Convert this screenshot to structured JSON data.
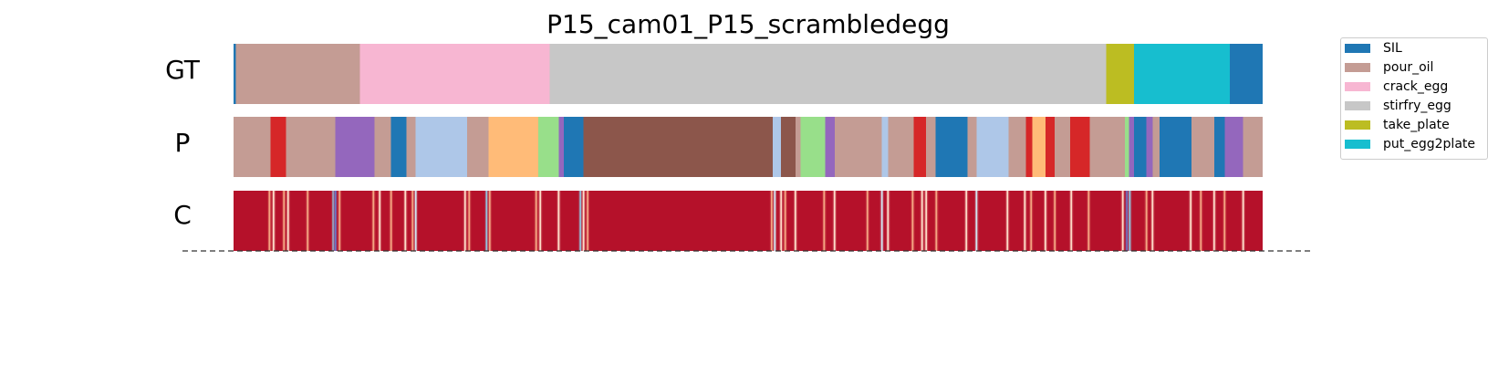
{
  "chart_data": {
    "type": "segmentation",
    "title": "P15_cam01_P15_scrambledegg",
    "rows": [
      "GT",
      "P",
      "C"
    ],
    "legend": [
      {
        "label": "SIL",
        "color": "#1f77b4"
      },
      {
        "label": "pour_oil",
        "color": "#c49c94"
      },
      {
        "label": "crack_egg",
        "color": "#f7b6d2"
      },
      {
        "label": "stirfry_egg",
        "color": "#c7c7c7"
      },
      {
        "label": "take_plate",
        "color": "#bcbd22"
      },
      {
        "label": "put_egg2plate",
        "color": "#17becf"
      }
    ],
    "legend_position": "top-right",
    "gt_segments": [
      {
        "label": "SIL",
        "start": 0.0,
        "end": 0.2
      },
      {
        "label": "pour_oil",
        "start": 0.2,
        "end": 12.3
      },
      {
        "label": "crack_egg",
        "start": 12.3,
        "end": 30.7
      },
      {
        "label": "stirfry_egg",
        "start": 30.7,
        "end": 84.8
      },
      {
        "label": "take_plate",
        "start": 84.8,
        "end": 87.5
      },
      {
        "label": "put_egg2plate",
        "start": 87.5,
        "end": 96.8
      },
      {
        "label": "SIL",
        "start": 96.8,
        "end": 100.0
      }
    ],
    "p_segments": [
      {
        "color": "#c49c94",
        "start": 0.0,
        "end": 3.6
      },
      {
        "color": "#d62728",
        "start": 3.6,
        "end": 5.1
      },
      {
        "color": "#c49c94",
        "start": 5.1,
        "end": 9.9
      },
      {
        "color": "#9467bd",
        "start": 9.9,
        "end": 13.7
      },
      {
        "color": "#c49c94",
        "start": 13.7,
        "end": 15.3
      },
      {
        "color": "#1f77b4",
        "start": 15.3,
        "end": 16.8
      },
      {
        "color": "#c49c94",
        "start": 16.8,
        "end": 17.7
      },
      {
        "color": "#aec7e8",
        "start": 17.7,
        "end": 22.7
      },
      {
        "color": "#c49c94",
        "start": 22.7,
        "end": 24.8
      },
      {
        "color": "#ffbb78",
        "start": 24.8,
        "end": 29.6
      },
      {
        "color": "#98df8a",
        "start": 29.6,
        "end": 31.6
      },
      {
        "color": "#9467bd",
        "start": 31.6,
        "end": 32.1
      },
      {
        "color": "#1f77b4",
        "start": 32.1,
        "end": 34.0
      },
      {
        "color": "#8c564b",
        "start": 34.0,
        "end": 52.4
      },
      {
        "color": "#aec7e8",
        "start": 52.4,
        "end": 53.2
      },
      {
        "color": "#8c564b",
        "start": 53.2,
        "end": 54.6
      },
      {
        "color": "#c49c94",
        "start": 54.6,
        "end": 55.1
      },
      {
        "color": "#98df8a",
        "start": 55.1,
        "end": 57.5
      },
      {
        "color": "#9467bd",
        "start": 57.5,
        "end": 58.4
      },
      {
        "color": "#c49c94",
        "start": 58.4,
        "end": 63.0
      },
      {
        "color": "#aec7e8",
        "start": 63.0,
        "end": 63.6
      },
      {
        "color": "#c49c94",
        "start": 63.6,
        "end": 66.1
      },
      {
        "color": "#d62728",
        "start": 66.1,
        "end": 67.3
      },
      {
        "color": "#c49c94",
        "start": 67.3,
        "end": 68.2
      },
      {
        "color": "#1f77b4",
        "start": 68.2,
        "end": 71.3
      },
      {
        "color": "#c49c94",
        "start": 71.3,
        "end": 72.2
      },
      {
        "color": "#aec7e8",
        "start": 72.2,
        "end": 75.3
      },
      {
        "color": "#c49c94",
        "start": 75.3,
        "end": 77.0
      },
      {
        "color": "#d62728",
        "start": 77.0,
        "end": 77.6
      },
      {
        "color": "#ffbb78",
        "start": 77.6,
        "end": 78.9
      },
      {
        "color": "#d62728",
        "start": 78.9,
        "end": 79.8
      },
      {
        "color": "#c49c94",
        "start": 79.8,
        "end": 81.3
      },
      {
        "color": "#d62728",
        "start": 81.3,
        "end": 83.2
      },
      {
        "color": "#c49c94",
        "start": 83.2,
        "end": 86.6
      },
      {
        "color": "#98df8a",
        "start": 86.6,
        "end": 87.0
      },
      {
        "color": "#9467bd",
        "start": 87.0,
        "end": 87.5
      },
      {
        "color": "#1f77b4",
        "start": 87.5,
        "end": 88.7
      },
      {
        "color": "#9467bd",
        "start": 88.7,
        "end": 89.3
      },
      {
        "color": "#c49c94",
        "start": 89.3,
        "end": 90.0
      },
      {
        "color": "#1f77b4",
        "start": 90.0,
        "end": 93.1
      },
      {
        "color": "#c49c94",
        "start": 93.1,
        "end": 95.3
      },
      {
        "color": "#1f77b4",
        "start": 95.3,
        "end": 96.3
      },
      {
        "color": "#9467bd",
        "start": 96.3,
        "end": 98.1
      },
      {
        "color": "#c49c94",
        "start": 98.1,
        "end": 100.0
      }
    ],
    "c_base_color": "#b5112a",
    "c_lines": [
      {
        "x": 3.5,
        "color": "#f4a582"
      },
      {
        "x": 3.9,
        "color": "#fddbc7"
      },
      {
        "x": 4.9,
        "color": "#f4a582"
      },
      {
        "x": 5.3,
        "color": "#fddbc7"
      },
      {
        "x": 7.2,
        "color": "#f4a582"
      },
      {
        "x": 9.7,
        "color": "#92c5de"
      },
      {
        "x": 9.9,
        "color": "#6a76c9"
      },
      {
        "x": 10.3,
        "color": "#f4a582"
      },
      {
        "x": 13.6,
        "color": "#f4a582"
      },
      {
        "x": 14.2,
        "color": "#fddbc7"
      },
      {
        "x": 15.3,
        "color": "#f4a582"
      },
      {
        "x": 16.7,
        "color": "#fddbc7"
      },
      {
        "x": 17.4,
        "color": "#f4a582"
      },
      {
        "x": 17.7,
        "color": "#d1e5f0"
      },
      {
        "x": 22.5,
        "color": "#fddbc7"
      },
      {
        "x": 22.9,
        "color": "#f4a582"
      },
      {
        "x": 24.6,
        "color": "#92c5de"
      },
      {
        "x": 24.9,
        "color": "#f4a582"
      },
      {
        "x": 29.4,
        "color": "#f4a582"
      },
      {
        "x": 29.8,
        "color": "#fddbc7"
      },
      {
        "x": 31.6,
        "color": "#fddbc7"
      },
      {
        "x": 33.7,
        "color": "#92c5de"
      },
      {
        "x": 34.0,
        "color": "#fddbc7"
      },
      {
        "x": 34.4,
        "color": "#f4a582"
      },
      {
        "x": 52.3,
        "color": "#f4a582"
      },
      {
        "x": 52.6,
        "color": "#d1e5f0"
      },
      {
        "x": 53.2,
        "color": "#fddbc7"
      },
      {
        "x": 53.6,
        "color": "#f4a582"
      },
      {
        "x": 54.6,
        "color": "#fddbc7"
      },
      {
        "x": 57.4,
        "color": "#f4a582"
      },
      {
        "x": 58.4,
        "color": "#fddbc7"
      },
      {
        "x": 61.6,
        "color": "#f4a582"
      },
      {
        "x": 63.0,
        "color": "#d1e5f0"
      },
      {
        "x": 63.6,
        "color": "#fddbc7"
      },
      {
        "x": 66.0,
        "color": "#f4a582"
      },
      {
        "x": 66.9,
        "color": "#fddbc7"
      },
      {
        "x": 67.3,
        "color": "#fddbc7"
      },
      {
        "x": 68.3,
        "color": "#f4a582"
      },
      {
        "x": 71.2,
        "color": "#fddbc7"
      },
      {
        "x": 72.2,
        "color": "#d1e5f0"
      },
      {
        "x": 75.2,
        "color": "#fddbc7"
      },
      {
        "x": 76.9,
        "color": "#fddbc7"
      },
      {
        "x": 77.5,
        "color": "#f4a582"
      },
      {
        "x": 78.9,
        "color": "#fddbc7"
      },
      {
        "x": 79.8,
        "color": "#f4a582"
      },
      {
        "x": 81.4,
        "color": "#fddbc7"
      },
      {
        "x": 83.1,
        "color": "#f4a582"
      },
      {
        "x": 86.4,
        "color": "#fddbc7"
      },
      {
        "x": 86.8,
        "color": "#6a76c9"
      },
      {
        "x": 87.1,
        "color": "#92c5de"
      },
      {
        "x": 88.7,
        "color": "#f4a582"
      },
      {
        "x": 89.3,
        "color": "#fddbc7"
      },
      {
        "x": 93.0,
        "color": "#fddbc7"
      },
      {
        "x": 94.0,
        "color": "#f4a582"
      },
      {
        "x": 95.3,
        "color": "#fddbc7"
      },
      {
        "x": 96.3,
        "color": "#f4a582"
      },
      {
        "x": 98.1,
        "color": "#fddbc7"
      }
    ],
    "xlim": [
      0,
      100
    ],
    "grid": false,
    "baseline_dashed": true
  }
}
